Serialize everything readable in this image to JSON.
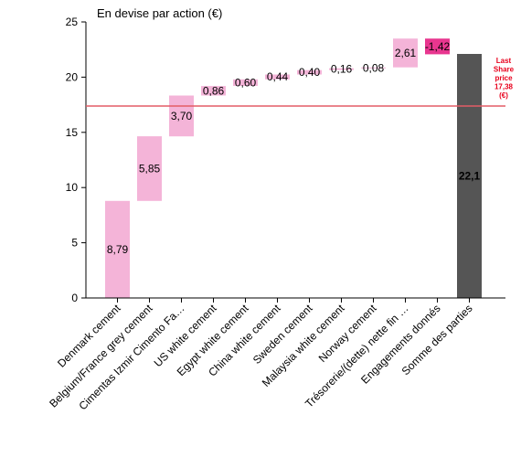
{
  "chart_data": {
    "type": "bar",
    "subtype": "waterfall",
    "title": "En devise par action (€)",
    "ylim": [
      0,
      25
    ],
    "yticks": [
      "0",
      "5",
      "10",
      "15",
      "20",
      "25"
    ],
    "grid": false,
    "categories": [
      "Denmark cement",
      "Belgium/France grey cement",
      "Cimentas Izmir Cimento Fa…",
      "US white cement",
      "Egypt white cement",
      "China white cement",
      "Sweden cement",
      "Malaysia white cement",
      "Norway cement",
      "Trésorerie/(dette) nette fin …",
      "Engagements donnés",
      "Somme des parties"
    ],
    "values": [
      8.79,
      5.85,
      3.7,
      0.86,
      0.6,
      0.44,
      0.4,
      0.16,
      0.08,
      2.61,
      -1.42,
      22.1
    ],
    "value_labels": [
      "8,79",
      "5,85",
      "3,70",
      "0,86",
      "0,60",
      "0,44",
      "0,40",
      "0,16",
      "0,08",
      "2,61",
      "-1,42",
      "22,1"
    ],
    "total_index": 11,
    "reference_line": {
      "value": 17.38,
      "label_lines": [
        "Last",
        "Share",
        "price",
        "17,38",
        "(€)"
      ]
    },
    "colors": {
      "positive": "#f4b4d8",
      "negative": "#e8368f",
      "total": "#555555",
      "reference": "#e35d66",
      "reference_text": "#e8001c",
      "total_text": "#ffffff"
    }
  }
}
